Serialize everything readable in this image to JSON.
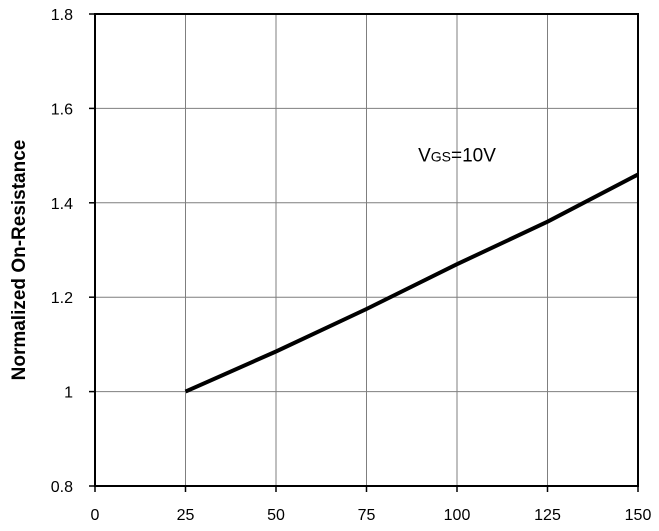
{
  "chart_data": {
    "type": "line",
    "title": "",
    "xlabel": "",
    "ylabel": "Normalized On-Resistance",
    "xlim": [
      0,
      150
    ],
    "ylim": [
      0.8,
      1.8
    ],
    "x_ticks": [
      0,
      25,
      50,
      75,
      100,
      125,
      150
    ],
    "y_ticks": [
      0.8,
      1,
      1.2,
      1.4,
      1.6,
      1.8
    ],
    "x_tick_labels": [
      "0",
      "25",
      "50",
      "75",
      "100",
      "125",
      "150"
    ],
    "y_tick_labels": [
      "0.8",
      "1",
      "1.2",
      "1.4",
      "1.6",
      "1.8"
    ],
    "grid": true,
    "series": [
      {
        "x": [
          25,
          50,
          75,
          100,
          125,
          150
        ],
        "y": [
          1.0,
          1.085,
          1.175,
          1.27,
          1.36,
          1.46
        ],
        "color": "#000000"
      }
    ],
    "annotations": [
      {
        "main": "V",
        "sub": "GS",
        "rest": "=10V",
        "x": 100,
        "y": 1.5
      }
    ]
  }
}
